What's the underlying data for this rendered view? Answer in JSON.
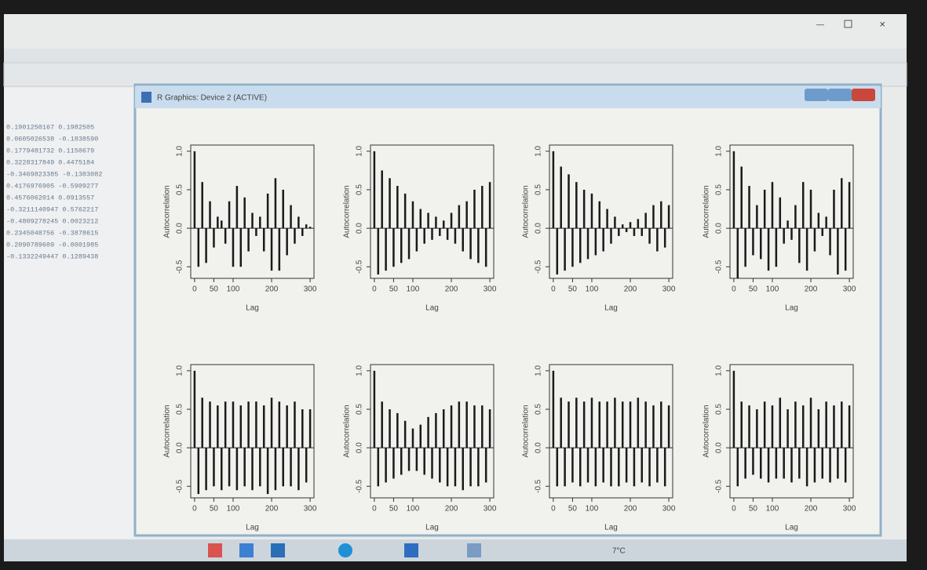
{
  "window": {
    "title": "R Graphics: Device 2 (ACTIVE)"
  },
  "console": {
    "lines": [
      "0.1901250167  0.1982505",
      "0.0605026538 -0.1838590",
      "0.1779481732  0.1150679",
      "0.3228317849  0.4475184",
      "-0.3469823385 -0.1303082",
      "0.4176976905 -0.5909277",
      "0.4576062014  0.0913557",
      "-0.3211140947  0.5762217",
      "-0.4809278245  0.0023212",
      "0.2345048756 -0.3878615",
      "0.2090789609 -0.0001985",
      "-0.1332249447  0.1289438"
    ]
  },
  "taskbar": {
    "temperature": "7°C"
  },
  "chart_data": [
    {
      "type": "bar",
      "xlabel": "Lag",
      "ylabel": "Autocorrelation",
      "color": "#1a1a1a",
      "xlim": [
        -10,
        310
      ],
      "ylim": [
        -0.65,
        1.08
      ],
      "xticks": [
        0,
        50,
        100,
        200,
        300
      ],
      "yticks": [
        -0.5,
        {
          "value": 0,
          "label": "0.0"
        },
        0.5,
        {
          "value": 1,
          "label": "1.0"
        }
      ],
      "x": [
        0,
        10,
        20,
        30,
        40,
        50,
        60,
        70,
        80,
        90,
        100,
        110,
        120,
        130,
        140,
        150,
        160,
        170,
        180,
        190,
        200,
        210,
        220,
        230,
        240,
        250,
        260,
        270,
        280,
        290,
        300
      ],
      "values": [
        1,
        -0.5,
        0.6,
        -0.45,
        0.35,
        -0.25,
        0.15,
        0.1,
        -0.2,
        0.35,
        -0.5,
        0.55,
        -0.5,
        0.4,
        -0.3,
        0.2,
        -0.1,
        0.15,
        -0.3,
        0.45,
        -0.55,
        0.65,
        -0.55,
        0.5,
        -0.35,
        0.3,
        -0.2,
        0.15,
        -0.1,
        0.05,
        0.02
      ]
    },
    {
      "type": "bar",
      "xlabel": "Lag",
      "ylabel": "Autocorrelation",
      "color": "#1a1a1a",
      "xlim": [
        -10,
        310
      ],
      "ylim": [
        -0.65,
        1.08
      ],
      "xticks": [
        0,
        50,
        100,
        200,
        300
      ],
      "yticks": [
        -0.5,
        {
          "value": 0,
          "label": "0.0"
        },
        0.5,
        {
          "value": 1,
          "label": "1.0"
        }
      ],
      "x": [
        0,
        10,
        20,
        30,
        40,
        50,
        60,
        70,
        80,
        90,
        100,
        110,
        120,
        130,
        140,
        150,
        160,
        170,
        180,
        190,
        200,
        210,
        220,
        230,
        240,
        250,
        260,
        270,
        280,
        290,
        300
      ],
      "values": [
        1,
        -0.6,
        0.75,
        -0.55,
        0.65,
        -0.5,
        0.55,
        -0.45,
        0.45,
        -0.4,
        0.35,
        -0.3,
        0.25,
        -0.2,
        0.2,
        -0.15,
        0.15,
        -0.1,
        0.1,
        -0.15,
        0.2,
        -0.2,
        0.3,
        -0.3,
        0.35,
        -0.4,
        0.5,
        -0.45,
        0.55,
        -0.5,
        0.6
      ]
    },
    {
      "type": "bar",
      "xlabel": "Lag",
      "ylabel": "Autocorrelation",
      "color": "#1a1a1a",
      "xlim": [
        -10,
        310
      ],
      "ylim": [
        -0.65,
        1.08
      ],
      "xticks": [
        0,
        50,
        100,
        200,
        300
      ],
      "yticks": [
        -0.5,
        {
          "value": 0,
          "label": "0.0"
        },
        0.5,
        {
          "value": 1,
          "label": "1.0"
        }
      ],
      "x": [
        0,
        10,
        20,
        30,
        40,
        50,
        60,
        70,
        80,
        90,
        100,
        110,
        120,
        130,
        140,
        150,
        160,
        170,
        180,
        190,
        200,
        210,
        220,
        230,
        240,
        250,
        260,
        270,
        280,
        290,
        300
      ],
      "values": [
        1,
        -0.6,
        0.8,
        -0.55,
        0.7,
        -0.5,
        0.6,
        -0.45,
        0.5,
        -0.4,
        0.45,
        -0.35,
        0.35,
        -0.3,
        0.25,
        -0.2,
        0.15,
        -0.1,
        0.05,
        -0.05,
        0.08,
        -0.1,
        0.12,
        -0.1,
        0.2,
        -0.2,
        0.3,
        -0.3,
        0.35,
        -0.25,
        0.3
      ]
    },
    {
      "type": "bar",
      "xlabel": "Lag",
      "ylabel": "Autocorrelation",
      "color": "#1a1a1a",
      "xlim": [
        -10,
        310
      ],
      "ylim": [
        -0.65,
        1.08
      ],
      "xticks": [
        0,
        50,
        100,
        200,
        300
      ],
      "yticks": [
        -0.5,
        {
          "value": 0,
          "label": "0.0"
        },
        0.5,
        {
          "value": 1,
          "label": "1.0"
        }
      ],
      "x": [
        0,
        10,
        20,
        30,
        40,
        50,
        60,
        70,
        80,
        90,
        100,
        110,
        120,
        130,
        140,
        150,
        160,
        170,
        180,
        190,
        200,
        210,
        220,
        230,
        240,
        250,
        260,
        270,
        280,
        290,
        300
      ],
      "values": [
        1,
        -0.65,
        0.8,
        -0.5,
        0.55,
        -0.35,
        0.3,
        -0.4,
        0.5,
        -0.55,
        0.6,
        -0.5,
        0.4,
        -0.2,
        0.1,
        -0.15,
        0.3,
        -0.45,
        0.6,
        -0.55,
        0.5,
        -0.3,
        0.2,
        -0.1,
        0.15,
        -0.35,
        0.5,
        -0.6,
        0.65,
        -0.55,
        0.6
      ]
    },
    {
      "type": "bar",
      "xlabel": "Lag",
      "ylabel": "Autocorrelation",
      "color": "#1a1a1a",
      "xlim": [
        -10,
        310
      ],
      "ylim": [
        -0.65,
        1.08
      ],
      "xticks": [
        0,
        50,
        100,
        200,
        300
      ],
      "yticks": [
        -0.5,
        {
          "value": 0,
          "label": "0.0"
        },
        0.5,
        {
          "value": 1,
          "label": "1.0"
        }
      ],
      "x": [
        0,
        10,
        20,
        30,
        40,
        50,
        60,
        70,
        80,
        90,
        100,
        110,
        120,
        130,
        140,
        150,
        160,
        170,
        180,
        190,
        200,
        210,
        220,
        230,
        240,
        250,
        260,
        270,
        280,
        290,
        300
      ],
      "values": [
        1,
        -0.6,
        0.65,
        -0.55,
        0.6,
        -0.5,
        0.55,
        -0.55,
        0.6,
        -0.5,
        0.6,
        -0.55,
        0.55,
        -0.5,
        0.6,
        -0.55,
        0.6,
        -0.5,
        0.55,
        -0.6,
        0.65,
        -0.55,
        0.6,
        -0.5,
        0.55,
        -0.5,
        0.6,
        -0.55,
        0.5,
        -0.45,
        0.5
      ]
    },
    {
      "type": "bar",
      "xlabel": "Lag",
      "ylabel": "Autocorrelation",
      "color": "#1a1a1a",
      "xlim": [
        -10,
        310
      ],
      "ylim": [
        -0.65,
        1.08
      ],
      "xticks": [
        0,
        50,
        100,
        200,
        300
      ],
      "yticks": [
        -0.5,
        {
          "value": 0,
          "label": "0.0"
        },
        0.5,
        {
          "value": 1,
          "label": "1.0"
        }
      ],
      "x": [
        0,
        10,
        20,
        30,
        40,
        50,
        60,
        70,
        80,
        90,
        100,
        110,
        120,
        130,
        140,
        150,
        160,
        170,
        180,
        190,
        200,
        210,
        220,
        230,
        240,
        250,
        260,
        270,
        280,
        290,
        300
      ],
      "values": [
        1,
        -0.5,
        0.6,
        -0.45,
        0.5,
        -0.4,
        0.45,
        -0.35,
        0.35,
        -0.3,
        0.25,
        -0.3,
        0.3,
        -0.35,
        0.4,
        -0.4,
        0.45,
        -0.45,
        0.5,
        -0.5,
        0.55,
        -0.5,
        0.6,
        -0.55,
        0.6,
        -0.5,
        0.55,
        -0.5,
        0.55,
        -0.45,
        0.5
      ]
    },
    {
      "type": "bar",
      "xlabel": "Lag",
      "ylabel": "Autocorrelation",
      "color": "#1a1a1a",
      "xlim": [
        -10,
        310
      ],
      "ylim": [
        -0.65,
        1.08
      ],
      "xticks": [
        0,
        50,
        100,
        200,
        300
      ],
      "yticks": [
        -0.5,
        {
          "value": 0,
          "label": "0.0"
        },
        0.5,
        {
          "value": 1,
          "label": "1.0"
        }
      ],
      "x": [
        0,
        10,
        20,
        30,
        40,
        50,
        60,
        70,
        80,
        90,
        100,
        110,
        120,
        130,
        140,
        150,
        160,
        170,
        180,
        190,
        200,
        210,
        220,
        230,
        240,
        250,
        260,
        270,
        280,
        290,
        300
      ],
      "values": [
        1,
        -0.5,
        0.65,
        -0.5,
        0.6,
        -0.45,
        0.65,
        -0.5,
        0.6,
        -0.45,
        0.65,
        -0.5,
        0.6,
        -0.45,
        0.6,
        -0.5,
        0.65,
        -0.5,
        0.6,
        -0.45,
        0.6,
        -0.5,
        0.65,
        -0.45,
        0.6,
        -0.5,
        0.55,
        -0.45,
        0.6,
        -0.5,
        0.55
      ]
    },
    {
      "type": "bar",
      "xlabel": "Lag",
      "ylabel": "Autocorrelation",
      "color": "#1a1a1a",
      "xlim": [
        -10,
        310
      ],
      "ylim": [
        -0.65,
        1.08
      ],
      "xticks": [
        0,
        50,
        100,
        200,
        300
      ],
      "yticks": [
        -0.5,
        {
          "value": 0,
          "label": "0.0"
        },
        0.5,
        {
          "value": 1,
          "label": "1.0"
        }
      ],
      "x": [
        0,
        10,
        20,
        30,
        40,
        50,
        60,
        70,
        80,
        90,
        100,
        110,
        120,
        130,
        140,
        150,
        160,
        170,
        180,
        190,
        200,
        210,
        220,
        230,
        240,
        250,
        260,
        270,
        280,
        290,
        300
      ],
      "values": [
        1,
        -0.5,
        0.6,
        -0.4,
        0.55,
        -0.35,
        0.5,
        -0.4,
        0.6,
        -0.45,
        0.55,
        -0.4,
        0.65,
        -0.4,
        0.5,
        -0.45,
        0.6,
        -0.4,
        0.55,
        -0.5,
        0.65,
        -0.45,
        0.5,
        -0.4,
        0.6,
        -0.45,
        0.55,
        -0.4,
        0.6,
        -0.45,
        0.55
      ]
    }
  ]
}
